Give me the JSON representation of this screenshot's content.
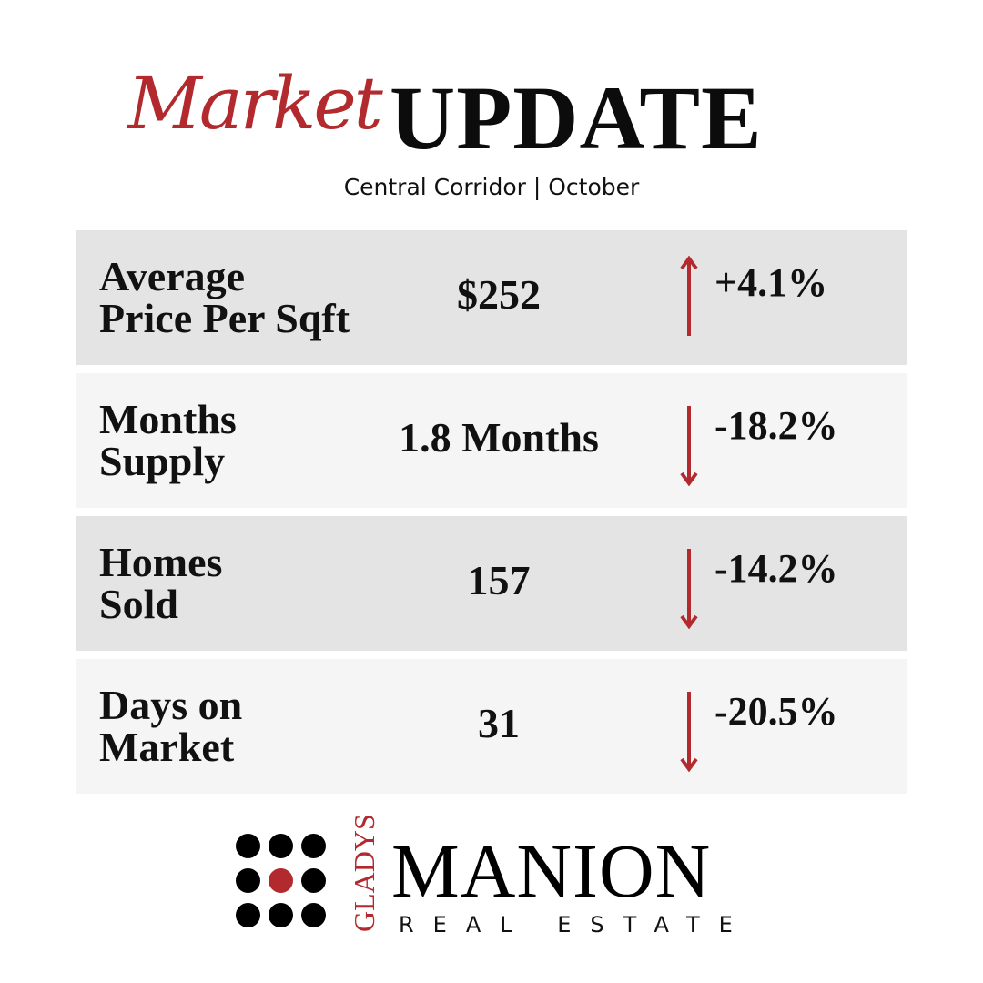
{
  "header": {
    "script_title": "Market",
    "title": "UPDATE",
    "subtitle": "Central Corridor | October"
  },
  "accent_color": "#b22a2e",
  "rows": [
    {
      "label_line1": "Average",
      "label_line2": "Price Per Sqft",
      "value": "$252",
      "direction": "up",
      "change": "+4.1%"
    },
    {
      "label_line1": "Months",
      "label_line2": "Supply",
      "value": "1.8 Months",
      "direction": "down",
      "change": "-18.2%"
    },
    {
      "label_line1": "Homes",
      "label_line2": "Sold",
      "value": "157",
      "direction": "down",
      "change": "-14.2%"
    },
    {
      "label_line1": "Days on",
      "label_line2": "Market",
      "value": "31",
      "direction": "down",
      "change": "-20.5%"
    }
  ],
  "logo": {
    "gladys": "GLADYS",
    "name": "MANION",
    "tagline": "REAL ESTATE"
  }
}
